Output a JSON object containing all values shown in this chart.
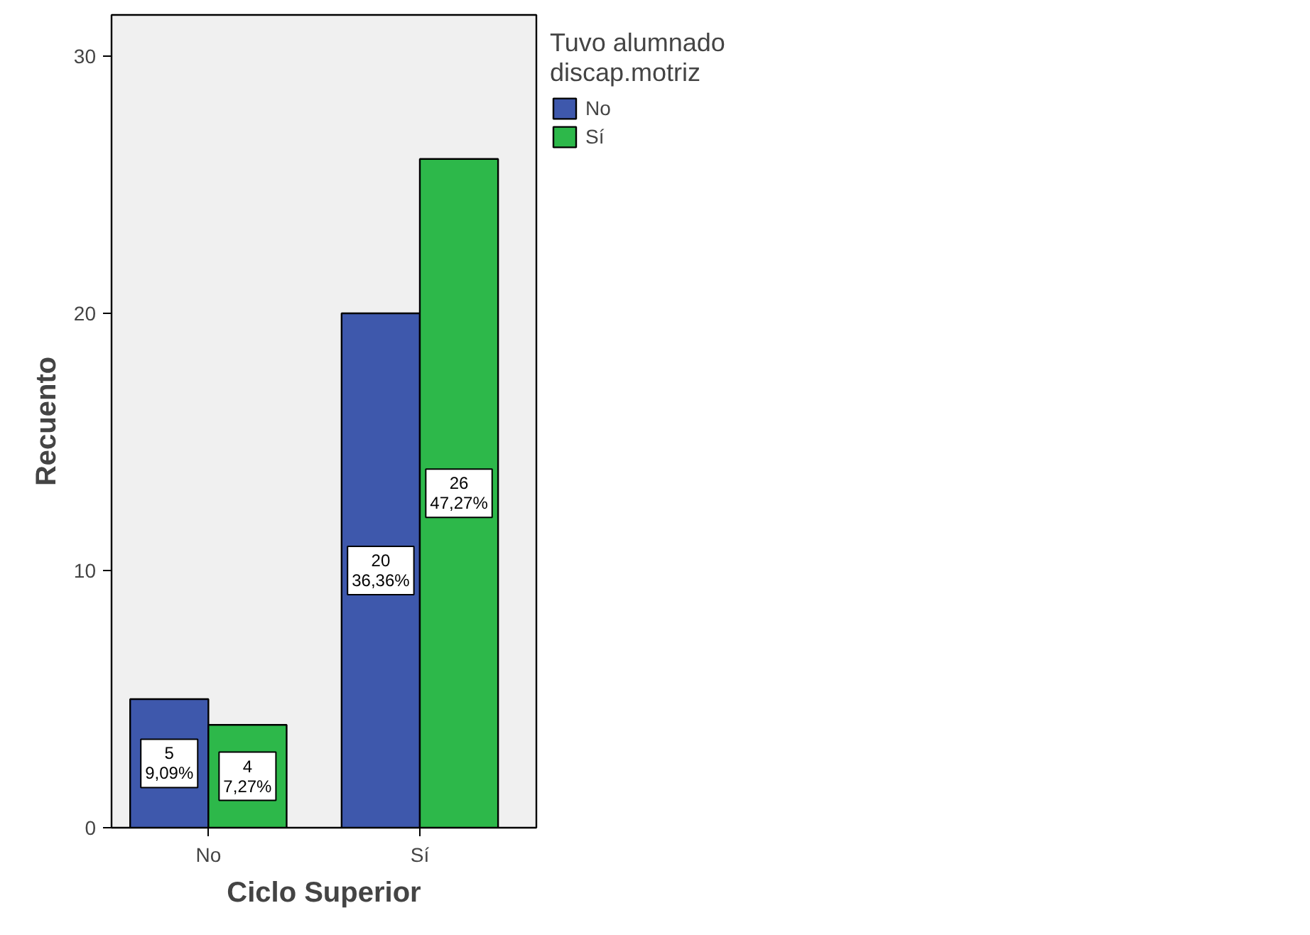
{
  "chart_data": {
    "type": "bar",
    "xlabel": "Ciclo Superior",
    "ylabel": "Recuento",
    "legend_title": "Tuvo alumnado\ndiscap.motriz",
    "categories": [
      "No",
      "Sí"
    ],
    "series": [
      {
        "name": "No",
        "color": "#3e58ac",
        "values": [
          5,
          20
        ],
        "value_labels": [
          "5\n9,09%",
          "20\n36,36%"
        ]
      },
      {
        "name": "Sí",
        "color": "#2db84a",
        "values": [
          4,
          26
        ],
        "value_labels": [
          "4\n7,27%",
          "26\n47,27%"
        ]
      }
    ],
    "ylim": [
      0,
      31.6
    ],
    "yticks": [
      0,
      10,
      20,
      30
    ],
    "grid": false,
    "legend": "right"
  }
}
